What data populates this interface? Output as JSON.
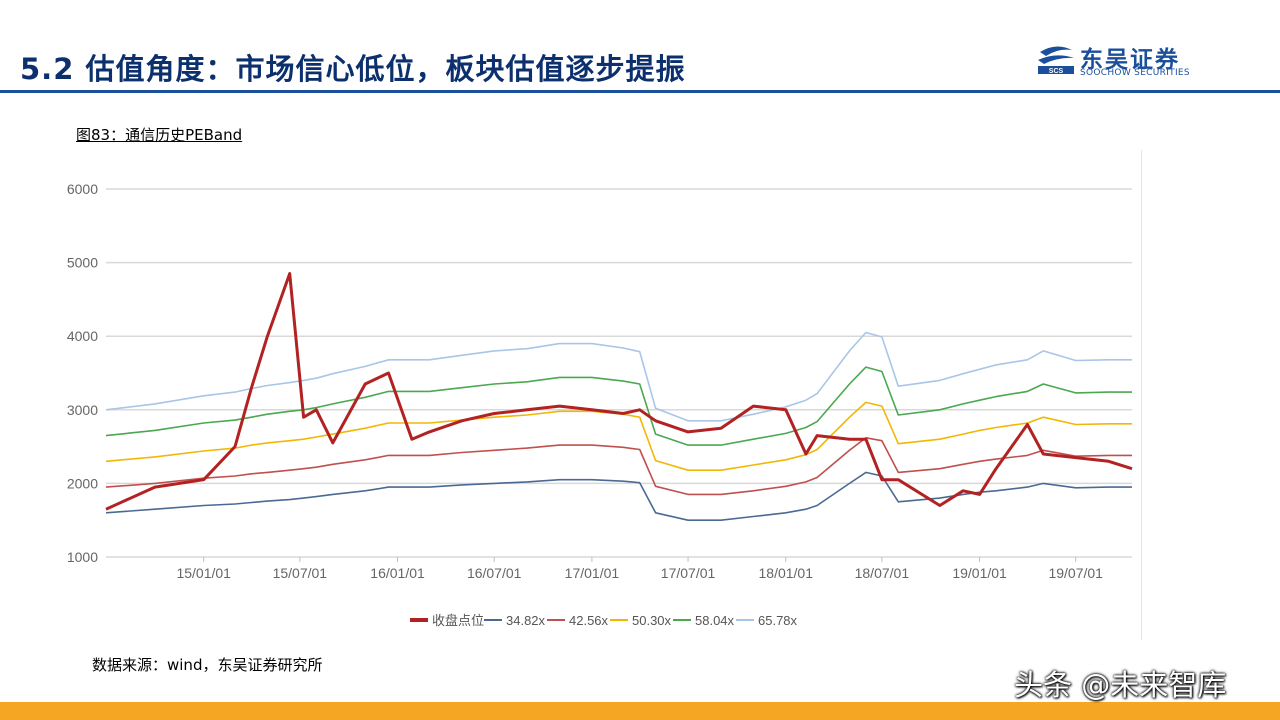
{
  "header": {
    "title": "5.2 估值角度：市场信心低位，板块估值逐步提振"
  },
  "logo": {
    "name_cn": "东吴证券",
    "name_en": "SOOCHOW SECURITIES",
    "brand_color": "#1a4f9c"
  },
  "figure": {
    "caption": "图83：通信历史PEBand"
  },
  "source": {
    "text": "数据来源：wind，东吴证券研究所"
  },
  "watermark": {
    "text": "头条 @未来智库"
  },
  "chart_data": {
    "type": "line",
    "ylim": [
      1000,
      6000
    ],
    "yticks": [
      1000,
      2000,
      3000,
      4000,
      5000,
      6000
    ],
    "xlim": [
      "2014-07-01",
      "2019-10-15"
    ],
    "xticks": [
      "15/01/01",
      "15/07/01",
      "16/01/01",
      "16/07/01",
      "17/01/01",
      "17/07/01",
      "18/01/01",
      "18/07/01",
      "19/01/01",
      "19/07/01"
    ],
    "xtick_dates": [
      "2015-01-01",
      "2015-07-01",
      "2016-01-01",
      "2016-07-01",
      "2017-01-01",
      "2017-07-01",
      "2018-01-01",
      "2018-07-01",
      "2019-01-01",
      "2019-07-01"
    ],
    "grid": true,
    "legend_position": "bottom",
    "x": [
      "2014-07-01",
      "2014-10-01",
      "2015-01-01",
      "2015-03-01",
      "2015-04-01",
      "2015-05-01",
      "2015-06-12",
      "2015-07-08",
      "2015-08-01",
      "2015-09-01",
      "2015-11-01",
      "2015-12-15",
      "2016-01-28",
      "2016-03-01",
      "2016-05-01",
      "2016-07-01",
      "2016-09-01",
      "2016-11-01",
      "2017-01-01",
      "2017-03-01",
      "2017-04-01",
      "2017-05-01",
      "2017-07-01",
      "2017-09-01",
      "2017-11-01",
      "2018-01-01",
      "2018-02-08",
      "2018-03-01",
      "2018-05-01",
      "2018-06-01",
      "2018-07-01",
      "2018-08-01",
      "2018-10-18",
      "2018-12-01",
      "2019-01-01",
      "2019-02-01",
      "2019-04-01",
      "2019-05-01",
      "2019-07-01",
      "2019-09-01",
      "2019-10-15"
    ],
    "series": [
      {
        "name": "收盘点位",
        "color": "#b22222",
        "values": [
          1650,
          1950,
          2050,
          2500,
          3300,
          4000,
          4850,
          2900,
          3000,
          2550,
          3350,
          3500,
          2600,
          2700,
          2850,
          2950,
          3000,
          3050,
          3000,
          2950,
          3000,
          2850,
          2700,
          2750,
          3050,
          3000,
          2400,
          2650,
          2600,
          2600,
          2050,
          2050,
          1700,
          1900,
          1850,
          2200,
          2800,
          2400,
          2350,
          2300,
          2200
        ]
      },
      {
        "name": "34.82x",
        "color": "#4a6a94",
        "values": [
          1600,
          1650,
          1700,
          1720,
          1740,
          1760,
          1780,
          1800,
          1820,
          1850,
          1900,
          1950,
          1950,
          1950,
          1980,
          2000,
          2020,
          2050,
          2050,
          2030,
          2010,
          1600,
          1500,
          1500,
          1550,
          1600,
          1650,
          1700,
          2000,
          2150,
          2100,
          1750,
          1800,
          1850,
          1880,
          1900,
          1950,
          2000,
          1940,
          1950,
          1950
        ]
      },
      {
        "name": "42.56x",
        "color": "#c0504d",
        "values": [
          1950,
          2000,
          2070,
          2100,
          2130,
          2150,
          2180,
          2200,
          2220,
          2260,
          2320,
          2380,
          2380,
          2380,
          2420,
          2450,
          2480,
          2520,
          2520,
          2490,
          2460,
          1960,
          1850,
          1850,
          1900,
          1960,
          2020,
          2080,
          2450,
          2620,
          2580,
          2150,
          2200,
          2260,
          2300,
          2330,
          2380,
          2450,
          2370,
          2380,
          2380
        ]
      },
      {
        "name": "50.30x",
        "color": "#f2b705",
        "values": [
          2300,
          2360,
          2440,
          2480,
          2520,
          2550,
          2580,
          2600,
          2630,
          2670,
          2750,
          2820,
          2820,
          2820,
          2860,
          2900,
          2930,
          2980,
          2980,
          2940,
          2900,
          2310,
          2180,
          2180,
          2250,
          2320,
          2390,
          2460,
          2900,
          3100,
          3050,
          2540,
          2600,
          2670,
          2720,
          2760,
          2820,
          2900,
          2800,
          2810,
          2810
        ]
      },
      {
        "name": "58.04x",
        "color": "#4aa84f",
        "values": [
          2650,
          2720,
          2820,
          2860,
          2900,
          2940,
          2980,
          3000,
          3030,
          3080,
          3170,
          3250,
          3250,
          3250,
          3300,
          3350,
          3380,
          3440,
          3440,
          3390,
          3350,
          2670,
          2520,
          2520,
          2600,
          2680,
          2760,
          2840,
          3350,
          3580,
          3520,
          2930,
          3000,
          3080,
          3130,
          3180,
          3250,
          3350,
          3230,
          3240,
          3240
        ]
      },
      {
        "name": "65.78x",
        "color": "#a9c5e8",
        "values": [
          3000,
          3080,
          3190,
          3240,
          3290,
          3330,
          3370,
          3400,
          3430,
          3490,
          3590,
          3680,
          3680,
          3680,
          3740,
          3800,
          3830,
          3900,
          3900,
          3840,
          3790,
          3020,
          2850,
          2850,
          2940,
          3040,
          3130,
          3220,
          3800,
          4050,
          3990,
          3320,
          3400,
          3490,
          3550,
          3610,
          3680,
          3800,
          3670,
          3680,
          3680
        ]
      }
    ]
  }
}
